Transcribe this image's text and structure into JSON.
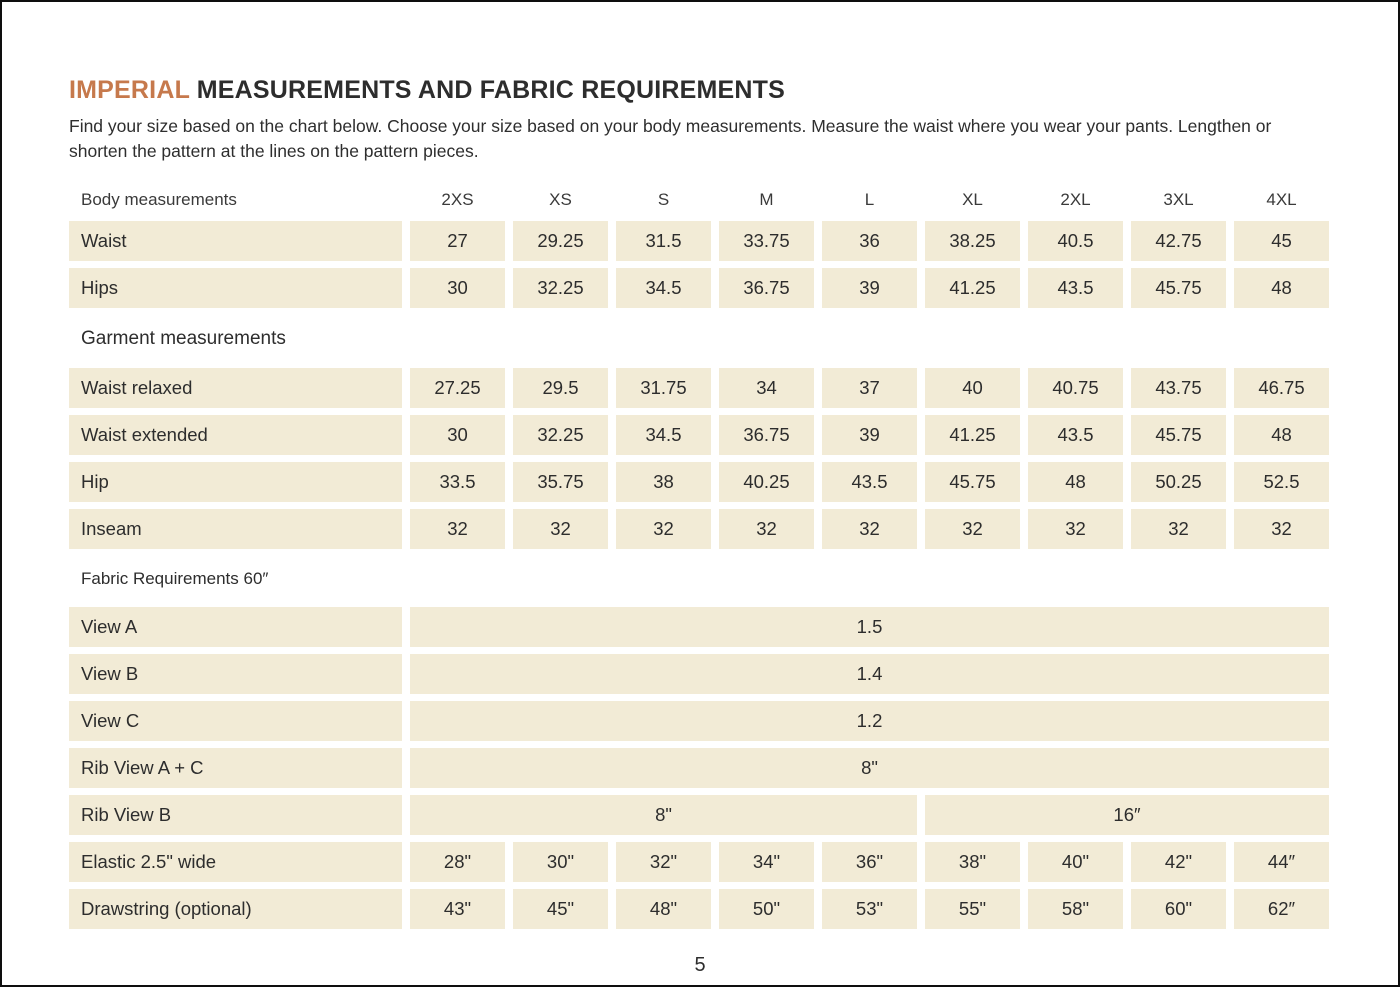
{
  "page": {
    "title_accent": "IMPERIAL",
    "title_rest": " MEASUREMENTS AND FABRIC REQUIREMENTS",
    "intro": "Find your size based on the chart below. Choose your size based on your body measurements. Measure the waist where you wear your pants. Lengthen or shorten the pattern at the lines on the pattern pieces.",
    "page_number": "5"
  },
  "colors": {
    "accent": "#c6794c",
    "cell_background": "#f2ebd6",
    "text": "#2d2d2d"
  },
  "chart_data": {
    "type": "table",
    "title": "Imperial measurements and fabric requirements",
    "column_count": 10,
    "size_columns": [
      "2XS",
      "XS",
      "S",
      "M",
      "L",
      "XL",
      "2XL",
      "3XL",
      "4XL"
    ],
    "rows": [
      {
        "type": "header",
        "label": "Body measurements",
        "cells": [
          "2XS",
          "XS",
          "S",
          "M",
          "L",
          "XL",
          "2XL",
          "3XL",
          "4XL"
        ]
      },
      {
        "type": "data",
        "label": "Waist",
        "cells": [
          "27",
          "29.25",
          "31.5",
          "33.75",
          "36",
          "38.25",
          "40.5",
          "42.75",
          "45"
        ]
      },
      {
        "type": "data",
        "label": "Hips",
        "cells": [
          "30",
          "32.25",
          "34.5",
          "36.75",
          "39",
          "41.25",
          "43.5",
          "45.75",
          "48"
        ]
      },
      {
        "type": "section",
        "label": "Garment measurements",
        "small": false
      },
      {
        "type": "data",
        "label": "Waist relaxed",
        "cells": [
          "27.25",
          "29.5",
          "31.75",
          "34",
          "37",
          "40",
          "40.75",
          "43.75",
          "46.75"
        ]
      },
      {
        "type": "data",
        "label": "Waist extended",
        "cells": [
          "30",
          "32.25",
          "34.5",
          "36.75",
          "39",
          "41.25",
          "43.5",
          "45.75",
          "48"
        ]
      },
      {
        "type": "data",
        "label": "Hip",
        "cells": [
          "33.5",
          "35.75",
          "38",
          "40.25",
          "43.5",
          "45.75",
          "48",
          "50.25",
          "52.5"
        ]
      },
      {
        "type": "data",
        "label": "Inseam",
        "cells": [
          "32",
          "32",
          "32",
          "32",
          "32",
          "32",
          "32",
          "32",
          "32"
        ]
      },
      {
        "type": "section",
        "label": "Fabric Requirements 60″",
        "small": true
      },
      {
        "type": "span",
        "label": "View A",
        "spans": [
          {
            "value": "1.5",
            "cols": 9
          }
        ]
      },
      {
        "type": "span",
        "label": "View B",
        "spans": [
          {
            "value": "1.4",
            "cols": 9
          }
        ]
      },
      {
        "type": "span",
        "label": "View C",
        "spans": [
          {
            "value": "1.2",
            "cols": 9
          }
        ]
      },
      {
        "type": "span",
        "label": "Rib View A + C",
        "spans": [
          {
            "value": "8\"",
            "cols": 9
          }
        ]
      },
      {
        "type": "span",
        "label": "Rib View B",
        "spans": [
          {
            "value": "8\"",
            "cols": 5
          },
          {
            "value": "16″",
            "cols": 4
          }
        ]
      },
      {
        "type": "data",
        "label": "Elastic 2.5\" wide",
        "cells": [
          "28\"",
          "30\"",
          "32\"",
          "34\"",
          "36\"",
          "38\"",
          "40\"",
          "42\"",
          "44″"
        ]
      },
      {
        "type": "data",
        "label": "Drawstring (optional)",
        "cells": [
          "43\"",
          "45\"",
          "48\"",
          "50\"",
          "53\"",
          "55\"",
          "58\"",
          "60\"",
          "62″"
        ]
      }
    ]
  }
}
